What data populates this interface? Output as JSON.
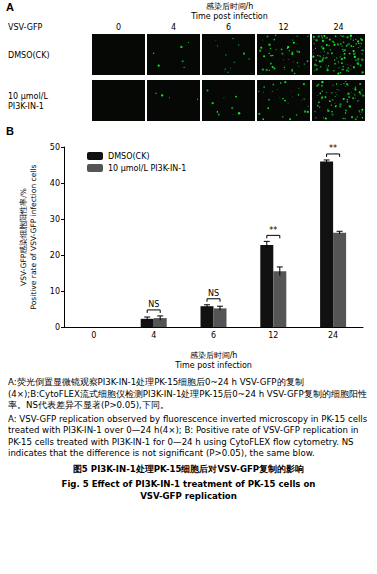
{
  "figure": {
    "caption_zh": "A:荧光倒置显微镜观察PI3K-IN-1处理PK-15细胞后0~24 h VSV-GFP的复制(4×);B:CytoFLEX流式细胞仪检测PI3K-IN-1处理PK-15后0~24 h VSV-GFP复制的细胞阳性率。NS代表差异不显著(P>0.05),下同。",
    "caption_en": "A: VSV-GFP replication observed by fluorescence inverted microscopy in PK-15 cells treated with PI3K-IN-1 over 0—24 h(4×); B: Positive rate of VSV-GFP replication in PK-15 cells treated with PI3K-IN-1 for 0—24 h using CytoFLEX flow cytometry. NS indicates that the difference is not significant (P>0.05), the same blow.",
    "title_zh": "图5 PI3K-IN-1处理PK-15细胞后对VSV-GFP复制的影响",
    "title_en": [
      "Fig. 5 Effect of PI3K-IN-1 treatment of PK-15 cells on",
      "VSV-GFP replication"
    ]
  },
  "panel_a": {
    "panel_label": "A",
    "header": [
      "感染后时间/h",
      "Time post infection"
    ],
    "row_header": "VSV-GFP",
    "columns": [
      "0",
      "4",
      "6",
      "12",
      "24"
    ],
    "rows": [
      [
        "DMSO(CK)"
      ],
      [
        "10 μmol/L",
        "PI3K-IN-1"
      ]
    ]
  },
  "chart_data": {
    "type": "bar",
    "panel_label": "B",
    "x_label": [
      "感染后时间/h",
      "Time post infection"
    ],
    "y_label": [
      "VSV-GFP感染细胞阳性率/%",
      "Positive rate of VSV-GFP infection cells"
    ],
    "categories": [
      "0",
      "4",
      "6",
      "12",
      "24"
    ],
    "series": [
      {
        "name": "DMSO(CK)",
        "color": "#111111",
        "values": [
          0,
          2.3,
          5.8,
          22.8,
          46.0
        ],
        "errors": [
          0,
          0.5,
          0.4,
          1.0,
          0.4
        ]
      },
      {
        "name": "10 μmol/L PI3K-IN-1",
        "color": "#555555",
        "values": [
          0,
          2.5,
          5.2,
          15.5,
          26.2
        ],
        "errors": [
          0,
          0.6,
          0.6,
          1.2,
          0.4
        ]
      }
    ],
    "annotations": [
      {
        "category": "4",
        "text": "NS"
      },
      {
        "category": "6",
        "text": "NS"
      },
      {
        "category": "12",
        "text": "**"
      },
      {
        "category": "24",
        "text": "**"
      }
    ],
    "ylim": [
      0,
      50
    ],
    "yticks": [
      0,
      10,
      20,
      30,
      40,
      50
    ],
    "grid": false,
    "legend": "upper left"
  }
}
